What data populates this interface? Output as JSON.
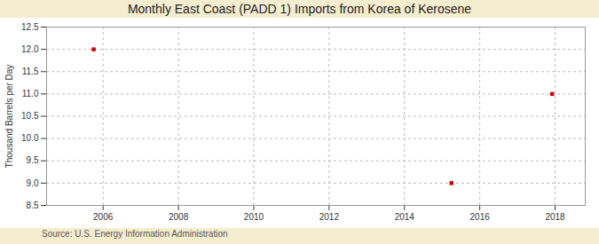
{
  "chart_data": {
    "type": "scatter",
    "title": "Monthly East Coast (PADD 1) Imports from Korea of Kerosene",
    "ylabel": "Thousand Barrels per Day",
    "source": "Source: U.S. Energy Information Administration",
    "x": [
      2005.75,
      2015.25,
      2017.92
    ],
    "values": [
      12.0,
      9.0,
      11.0
    ],
    "color": "#cc0000",
    "marker": "square",
    "xlim": [
      2004.5,
      2018.8
    ],
    "ylim": [
      8.5,
      12.5
    ],
    "xticks": [
      2006,
      2008,
      2010,
      2012,
      2014,
      2016,
      2018
    ],
    "yticks": [
      8.5,
      {
        "value": 9,
        "label": "9.0"
      },
      9.5,
      {
        "value": 10,
        "label": "10.0"
      },
      10.5,
      {
        "value": 11,
        "label": "11.0"
      },
      11.5,
      {
        "value": 12,
        "label": "12.0"
      },
      12.5
    ],
    "grid": true
  }
}
